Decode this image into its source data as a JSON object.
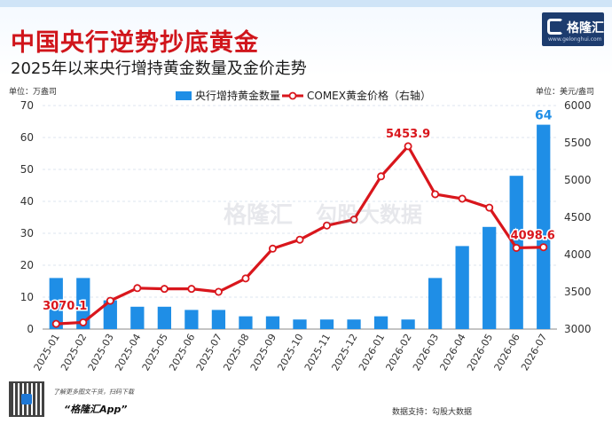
{
  "header": {
    "title": "中国央行逆势抄底黄金",
    "subtitle": "2025年以来央行增持黄金数量及金价走势"
  },
  "logo": {
    "name": "格隆汇",
    "url": "www.gelonghui.com"
  },
  "footer": {
    "hint": "了解更多图文干货，扫码下载",
    "app": "“格隆汇App”",
    "source": "数据支持：勾股大数据"
  },
  "watermark": {
    "left": "格隆汇",
    "right": "勾股大数据",
    "left_url": "www.gelonghui.com",
    "right_url": "www.gogudata.com"
  },
  "colors": {
    "bar": "#1f8ee6",
    "line": "#d9161c",
    "title": "#d0151b",
    "accent_label": "#1f8ee6"
  },
  "chart_data": {
    "type": "bar",
    "categories": [
      "2025-01",
      "2025-02",
      "2025-03",
      "2025-04",
      "2025-05",
      "2025-06",
      "2025-07",
      "2025-08",
      "2025-09",
      "2025-10",
      "2025-11",
      "2025-12",
      "2026-01",
      "2026-02",
      "2026-03",
      "2026-04",
      "2026-05",
      "2026-06",
      "2026-07"
    ],
    "series": [
      {
        "name": "央行增持黄金数量",
        "type": "bar",
        "axis": "left",
        "values": [
          16,
          16,
          9,
          7,
          7,
          6,
          6,
          4,
          4,
          3,
          3,
          3,
          4,
          3,
          16,
          26,
          32,
          48,
          64
        ]
      },
      {
        "name": "COMEX黄金价格（右轴）",
        "type": "line",
        "axis": "right",
        "values": [
          3070.1,
          3090,
          3380,
          3550,
          3540,
          3540,
          3500,
          3680,
          4080,
          4200,
          4390,
          4470,
          5050,
          5453.9,
          4810,
          4750,
          4630,
          4090,
          4098.6
        ]
      }
    ],
    "ylabel_left": "单位：万盎司",
    "ylabel_right": "单位：美元/盎司",
    "ylim_left": [
      0,
      70
    ],
    "ylim_right": [
      3000,
      6000
    ],
    "yticks_left": [
      0,
      10,
      20,
      30,
      40,
      50,
      60,
      70
    ],
    "yticks_right": [
      3000,
      3500,
      4000,
      4500,
      5000,
      5500,
      6000
    ],
    "annotations": [
      {
        "series": 1,
        "index": 0,
        "label": "3070.1"
      },
      {
        "series": 1,
        "index": 13,
        "label": "5453.9"
      },
      {
        "series": 1,
        "index": 18,
        "label": "4098.6"
      },
      {
        "series": 0,
        "index": 18,
        "label": "64"
      }
    ],
    "legend": "top-center",
    "grid": true
  }
}
